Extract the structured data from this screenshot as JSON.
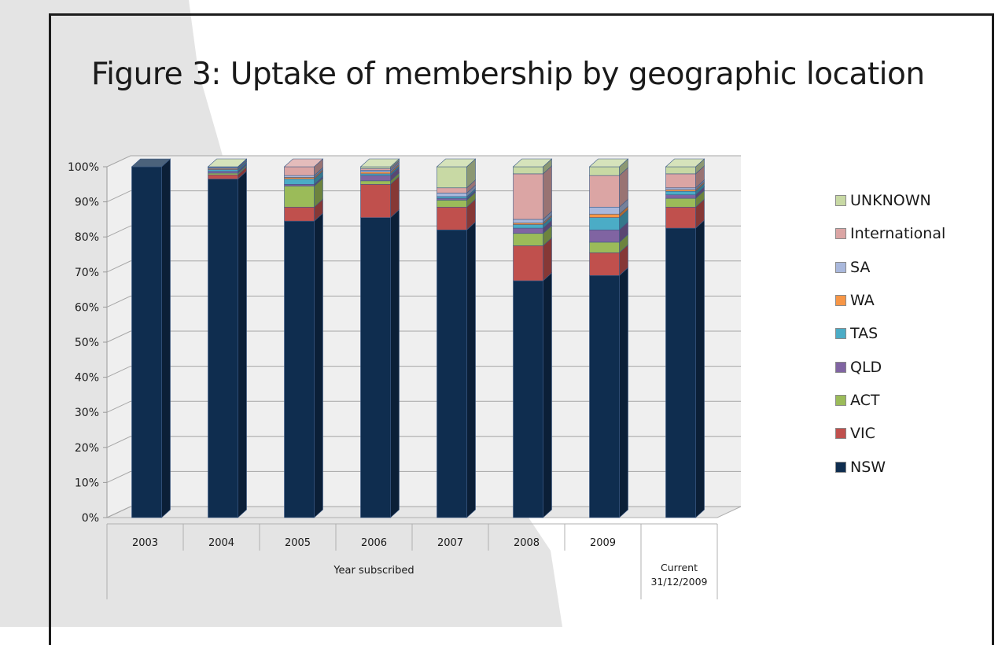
{
  "title": "Figure 3: Uptake of membership by geographic location",
  "colors": {
    "NSW": "#0f2d4f",
    "VIC": "#c0504d",
    "ACT": "#9bbb59",
    "QLD": "#8064a2",
    "TAS": "#4bacc6",
    "WA": "#f79646",
    "SA": "#a9b8dc",
    "International": "#dba5a4",
    "UNKNOWN": "#c8d9a4"
  },
  "chart_data": {
    "type": "bar",
    "stacked": true,
    "percent": true,
    "three_d": true,
    "categories": [
      "2003",
      "2004",
      "2005",
      "2006",
      "2007",
      "2008",
      "2009",
      "Current 31/12/2009"
    ],
    "xlabel": "Year subscribed",
    "ylabel": "",
    "ylim": [
      0,
      100
    ],
    "yticks": [
      "0%",
      "10%",
      "20%",
      "30%",
      "40%",
      "50%",
      "60%",
      "70%",
      "80%",
      "90%",
      "100%"
    ],
    "series": [
      {
        "name": "NSW",
        "values": [
          100,
          96.5,
          84.5,
          85.5,
          82,
          67.5,
          69,
          82.5
        ]
      },
      {
        "name": "VIC",
        "values": [
          0,
          1.2,
          4,
          9.5,
          6.5,
          10,
          6.5,
          6
        ]
      },
      {
        "name": "ACT",
        "values": [
          0,
          0.5,
          6,
          1,
          2,
          3.5,
          3,
          2.5
        ]
      },
      {
        "name": "QLD",
        "values": [
          0,
          0.5,
          0.5,
          1.5,
          0.5,
          1.5,
          3.5,
          1
        ]
      },
      {
        "name": "TAS",
        "values": [
          0,
          0.5,
          1.5,
          0.5,
          0.5,
          1,
          3.5,
          1
        ]
      },
      {
        "name": "WA",
        "values": [
          0,
          0.3,
          0.5,
          0.5,
          0,
          0.5,
          1,
          0.5
        ]
      },
      {
        "name": "SA",
        "values": [
          0,
          0.3,
          0.5,
          0.5,
          1,
          1,
          2,
          0.5
        ]
      },
      {
        "name": "International",
        "values": [
          0,
          0.1,
          2.5,
          0.5,
          1.5,
          13,
          9,
          4
        ]
      },
      {
        "name": "UNKNOWN",
        "values": [
          0,
          0.1,
          0,
          0.5,
          6,
          2,
          2.5,
          2
        ]
      }
    ],
    "legend": [
      "UNKNOWN",
      "International",
      "SA",
      "WA",
      "TAS",
      "QLD",
      "ACT",
      "VIC",
      "NSW"
    ],
    "legend_position": "right"
  }
}
